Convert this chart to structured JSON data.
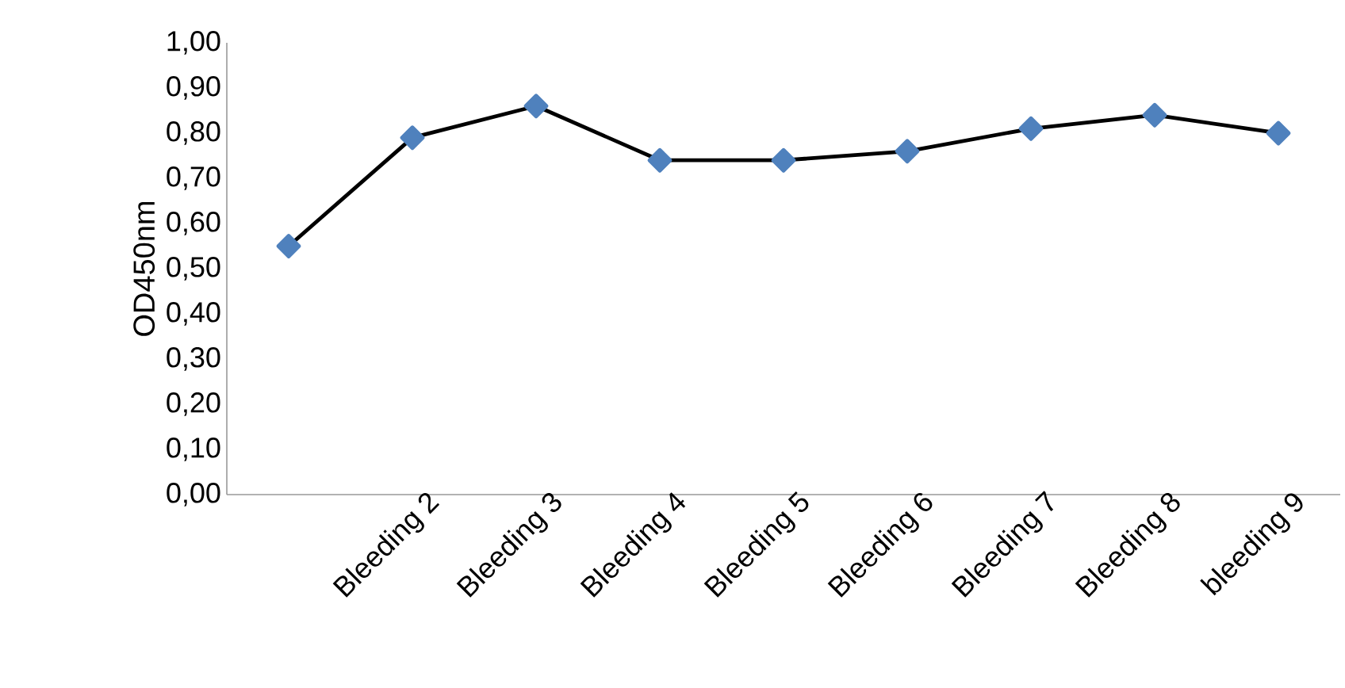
{
  "chart_data": {
    "type": "line",
    "ylabel": "OD450nm",
    "categories": [
      null,
      "Bleeding 2",
      "Bleeding 3",
      "Bleeding 4",
      "Bleeding 5",
      "Bleeding 6",
      "Bleeding 7",
      "Bleeding 8",
      "bleeding 9"
    ],
    "series": [
      {
        "color": "#4f81bd",
        "values": [
          0.55,
          0.79,
          0.86,
          0.74,
          0.74,
          0.76,
          0.81,
          0.84,
          0.8
        ]
      }
    ],
    "marker": "diamond",
    "line_style": "solid",
    "ylim": [
      0,
      1
    ],
    "yticks": [
      {
        "value": 0,
        "label": "0,00"
      },
      {
        "value": 0.1,
        "label": "0,10"
      },
      {
        "value": 0.2,
        "label": "0,20"
      },
      {
        "value": 0.3,
        "label": "0,30"
      },
      {
        "value": 0.4,
        "label": "0,40"
      },
      {
        "value": 0.5,
        "label": "0,50"
      },
      {
        "value": 0.6,
        "label": "0,60"
      },
      {
        "value": 0.7,
        "label": "0,70"
      },
      {
        "value": 0.8,
        "label": "0,80"
      },
      {
        "value": 0.9,
        "label": "0,90"
      },
      {
        "value": 1,
        "label": "1,00"
      }
    ]
  }
}
